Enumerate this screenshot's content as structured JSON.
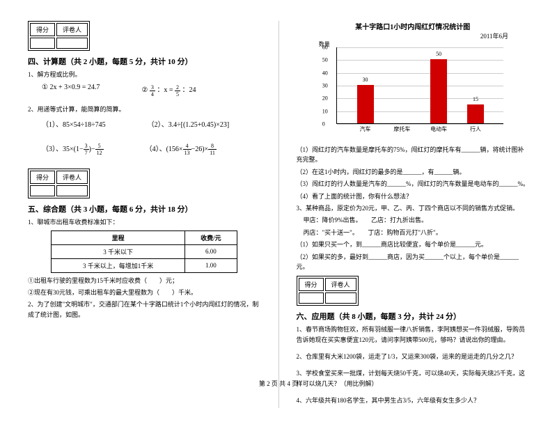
{
  "scorebox": {
    "col1": "得分",
    "col2": "评卷人"
  },
  "section4": {
    "title": "四、计算题（共 2 小题，每题 5 分，共计 10 分）",
    "q1": "1、解方程或比例。",
    "q1a": "① 2x + 3×0.9 = 24.7",
    "q1b_pre": "②",
    "q1b_mid": "：x =",
    "q1b_after": "：24",
    "q2": "2、用递等式计算，能简算的简算。",
    "q2_1": "（1）、85×54÷18÷745",
    "q2_2": "（2）、3.4÷[(1.25+0.45)×23]",
    "q2_3_pre": "（3）、35×(1−",
    "q2_3_mid": ")−",
    "q2_4_pre": "（4）、(156×",
    "q2_4_mid": "−26)×"
  },
  "section5": {
    "title": "五、综合题（共 3 小题，每题 6 分，共计 18 分）",
    "q1": "1、聊城市出租车收费标准如下：",
    "table": {
      "h1": "里程",
      "h2": "收费/元",
      "r1c1": "3 千米以下",
      "r1c2": "6.00",
      "r2c1": "3 千米以上，每增加1千米",
      "r2c2": "1.00"
    },
    "q1_1": "①出租车行驶的里程数为15千米时应收费（　　）元；",
    "q1_2": "②现在有30元钱，可乘出租车的最大里程数为（　　）千米。",
    "q2": "2、为了创建\"文明城市\"，交通部门在某个十字路口统计1个小时内闯红灯的情况，制成了统计图，如图。"
  },
  "chart": {
    "title": "某十字路口1小时内闯红灯情况统计图",
    "date": "2011年6月",
    "y_axis": "数量",
    "y_ticks": [
      0,
      10,
      20,
      30,
      40,
      50,
      60
    ],
    "categories": [
      "汽车",
      "摩托车",
      "电动车",
      "行人"
    ],
    "values": [
      30,
      null,
      50,
      15
    ],
    "labels": [
      "30",
      "",
      "50",
      "15"
    ],
    "bar_color": "#d00000",
    "grid_color": "#cccccc"
  },
  "chart_q": {
    "q1": "（1）闯红灯的汽车数量是摩托车的75%，闯红灯的摩托车有______辆，将统计图补充完整。",
    "q2": "（2）在这1小时内，闯红灯的最多的是______，有______辆。",
    "q3": "（3）闯红灯的行人数量是汽车的______%，闯红灯的汽车数量是电动车的______%。",
    "q4": "（4）看了上面的统计图，你有什么想法？",
    "q3num": "3、某种商品，原定价为20元，甲、乙、丙、丁四个商店以不同的销售方式促销。",
    "q3_a": "甲店：降价9%出售。　　乙店：打九折出售。",
    "q3_b": "丙店：\"买十送一\"。　　丁店：购物百元打\"八折\"。",
    "q3_1": "（1）如果只买一个，到______商店比较便宜，每个单价是______元。",
    "q3_2": "（2）如果买的多，最好到______商店，因为买______个以上，每个单价是______元。"
  },
  "section6": {
    "title": "六、应用题（共 8 小题，每题 3 分，共计 24 分）",
    "q1": "1、春节商场购物狂欢，所有羽绒服一律八折销售，李阿姨想买一件羽绒服，导购员告诉她现在买实惠便宜120元，请问李阿姨带500元，够吗？请说出你的理由。",
    "q2": "2、仓库里有大米1200袋，运走了1/3，又运来300袋，运来的是运走的几分之几？",
    "q3": "3、学校食堂买来一批煤，计划每天烧50千克，可以烧40天，实际每天烧25千克，这样可以烧几天？（用比例解）",
    "q4": "4、六年级共有180名学生，其中男生占3/5，六年级有女生多少人？"
  },
  "fracs": {
    "f34": {
      "n": "3",
      "d": "4"
    },
    "f25": {
      "n": "2",
      "d": "5"
    },
    "f37": {
      "n": "3",
      "d": "7"
    },
    "f512": {
      "n": "5",
      "d": "12"
    },
    "f413": {
      "n": "4",
      "d": "13"
    },
    "f811": {
      "n": "8",
      "d": "11"
    }
  },
  "footer": "第 2 页 共 4 页"
}
